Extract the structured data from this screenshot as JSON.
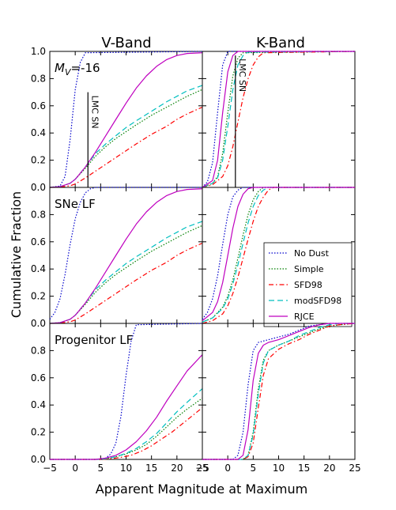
{
  "figure": {
    "columns": [
      "V-Band",
      "K-Band"
    ],
    "xlabel": "Apparent Magnitude at Maximum",
    "ylabel": "Cumulative Fraction"
  },
  "styles": {
    "No Dust": {
      "color": "#0000cc",
      "dash": "dotted"
    },
    "Simple": {
      "color": "#007f00",
      "dash": "dotted"
    },
    "SFD98": {
      "color": "#ff0000",
      "dash": "dashdot"
    },
    "modSFD98": {
      "color": "#00bfbf",
      "dash": "dashed"
    },
    "RJCE": {
      "color": "#bf00bf",
      "dash": "solid"
    }
  },
  "legend": {
    "position": "middle-right panel, right",
    "entries": [
      "No Dust",
      "Simple",
      "SFD98",
      "modSFD98",
      "RJCE"
    ]
  },
  "chart_data": [
    {
      "type": "line",
      "panel": "top-left",
      "column": "V-Band",
      "annotation": "M_V=-16",
      "vline": {
        "x": 2.5,
        "ymax": 0.7,
        "label": "LMC SN"
      },
      "xlim": [
        -5,
        25
      ],
      "ylim": [
        0,
        1.0
      ],
      "xticks": [
        "−5",
        "0",
        "5",
        "10",
        "15",
        "20",
        "25"
      ],
      "yticks": [
        "0.0",
        "0.2",
        "0.4",
        "0.6",
        "0.8",
        "1.0"
      ],
      "series": [
        {
          "name": "No Dust",
          "x": [
            -5,
            -3,
            -2,
            -1,
            0,
            1,
            2,
            25
          ],
          "values": [
            0,
            0.01,
            0.08,
            0.35,
            0.72,
            0.92,
            0.99,
            1.0
          ]
        },
        {
          "name": "Simple",
          "x": [
            -5,
            -3,
            -1,
            0,
            2,
            4,
            6,
            8,
            10,
            12,
            15,
            18,
            20,
            22,
            25
          ],
          "values": [
            0,
            0.005,
            0.03,
            0.06,
            0.14,
            0.23,
            0.3,
            0.36,
            0.41,
            0.46,
            0.53,
            0.59,
            0.63,
            0.67,
            0.72
          ]
        },
        {
          "name": "SFD98",
          "x": [
            -5,
            -3,
            -1,
            0,
            2,
            4,
            6,
            8,
            10,
            12,
            15,
            18,
            20,
            22,
            25
          ],
          "values": [
            0,
            0.002,
            0.012,
            0.025,
            0.07,
            0.12,
            0.17,
            0.22,
            0.27,
            0.32,
            0.39,
            0.45,
            0.5,
            0.54,
            0.59
          ]
        },
        {
          "name": "modSFD98",
          "x": [
            -5,
            -3,
            -1,
            0,
            2,
            4,
            6,
            8,
            10,
            12,
            15,
            18,
            20,
            22,
            25
          ],
          "values": [
            0,
            0.005,
            0.03,
            0.06,
            0.15,
            0.25,
            0.32,
            0.38,
            0.44,
            0.49,
            0.56,
            0.63,
            0.67,
            0.71,
            0.75
          ]
        },
        {
          "name": "RJCE",
          "x": [
            -5,
            -3,
            -1,
            0,
            2,
            4,
            6,
            8,
            10,
            12,
            14,
            16,
            18,
            20,
            22,
            25
          ],
          "values": [
            0,
            0.005,
            0.03,
            0.06,
            0.15,
            0.26,
            0.38,
            0.5,
            0.62,
            0.73,
            0.82,
            0.89,
            0.94,
            0.97,
            0.985,
            0.99
          ]
        }
      ]
    },
    {
      "type": "line",
      "panel": "top-right",
      "column": "K-Band",
      "vline": {
        "x": 1.5,
        "ymax": 0.97,
        "label": "LMC SN"
      },
      "xlim": [
        -5,
        25
      ],
      "ylim": [
        0,
        1.0
      ],
      "xticks": [
        "−5",
        "0",
        "5",
        "10",
        "15",
        "20",
        "25"
      ],
      "series": [
        {
          "name": "No Dust",
          "x": [
            -5,
            -4,
            -3,
            -2,
            -1,
            0,
            25
          ],
          "values": [
            0,
            0.04,
            0.18,
            0.55,
            0.9,
            1.0,
            1.0
          ]
        },
        {
          "name": "Simple",
          "x": [
            -5,
            -3,
            -2,
            -1,
            0,
            1,
            2,
            3,
            25
          ],
          "values": [
            0,
            0.03,
            0.08,
            0.25,
            0.55,
            0.82,
            0.95,
            0.99,
            1.0
          ]
        },
        {
          "name": "SFD98",
          "x": [
            -5,
            -3,
            -1,
            0,
            1,
            2,
            3,
            4,
            5,
            6,
            7,
            25
          ],
          "values": [
            0,
            0.02,
            0.08,
            0.16,
            0.3,
            0.48,
            0.66,
            0.8,
            0.9,
            0.96,
            0.99,
            1.0
          ]
        },
        {
          "name": "modSFD98",
          "x": [
            -5,
            -3,
            -2,
            -1,
            0,
            1,
            2,
            3,
            4,
            25
          ],
          "values": [
            0,
            0.03,
            0.07,
            0.2,
            0.45,
            0.72,
            0.9,
            0.97,
            0.995,
            1.0
          ]
        },
        {
          "name": "RJCE",
          "x": [
            -5,
            -3,
            -2,
            -1,
            0,
            1,
            2,
            25
          ],
          "values": [
            0,
            0.05,
            0.2,
            0.55,
            0.85,
            0.97,
            1.0,
            1.0
          ]
        }
      ]
    },
    {
      "type": "line",
      "panel": "middle-left",
      "column": "V-Band",
      "annotation": "SNe LF",
      "xlim": [
        -5,
        25
      ],
      "ylim": [
        0,
        1.0
      ],
      "xticks": [
        "−5",
        "0",
        "5",
        "10",
        "15",
        "20",
        "25"
      ],
      "yticks": [
        "0.0",
        "0.2",
        "0.4",
        "0.6",
        "0.8"
      ],
      "series": [
        {
          "name": "No Dust",
          "x": [
            -5,
            -4,
            -3,
            -2,
            -1,
            0,
            1,
            2,
            3,
            4,
            25
          ],
          "values": [
            0.03,
            0.08,
            0.18,
            0.36,
            0.58,
            0.77,
            0.89,
            0.96,
            0.99,
            1.0,
            1.0
          ]
        },
        {
          "name": "Simple",
          "x": [
            -5,
            -3,
            -1,
            0,
            2,
            4,
            6,
            8,
            10,
            12,
            15,
            18,
            20,
            22,
            25
          ],
          "values": [
            0,
            0.005,
            0.03,
            0.06,
            0.14,
            0.23,
            0.3,
            0.36,
            0.41,
            0.46,
            0.53,
            0.59,
            0.63,
            0.67,
            0.72
          ]
        },
        {
          "name": "SFD98",
          "x": [
            -5,
            -3,
            -1,
            0,
            2,
            4,
            6,
            8,
            10,
            12,
            15,
            18,
            20,
            22,
            25
          ],
          "values": [
            0,
            0.002,
            0.012,
            0.025,
            0.07,
            0.12,
            0.17,
            0.22,
            0.27,
            0.32,
            0.39,
            0.45,
            0.5,
            0.54,
            0.59
          ]
        },
        {
          "name": "modSFD98",
          "x": [
            -5,
            -3,
            -1,
            0,
            2,
            4,
            6,
            8,
            10,
            12,
            15,
            18,
            20,
            22,
            25
          ],
          "values": [
            0,
            0.005,
            0.03,
            0.06,
            0.15,
            0.25,
            0.32,
            0.38,
            0.44,
            0.49,
            0.56,
            0.63,
            0.67,
            0.71,
            0.75
          ]
        },
        {
          "name": "RJCE",
          "x": [
            -5,
            -3,
            -1,
            0,
            2,
            4,
            6,
            8,
            10,
            12,
            14,
            16,
            18,
            20,
            22,
            25
          ],
          "values": [
            0,
            0.005,
            0.03,
            0.06,
            0.15,
            0.26,
            0.38,
            0.5,
            0.62,
            0.73,
            0.82,
            0.89,
            0.94,
            0.97,
            0.985,
            0.99
          ]
        }
      ]
    },
    {
      "type": "line",
      "panel": "middle-right",
      "column": "K-Band",
      "xlim": [
        -5,
        25
      ],
      "ylim": [
        0,
        1.0
      ],
      "xticks": [
        "−5",
        "0",
        "5",
        "10",
        "15",
        "20",
        "25"
      ],
      "series": [
        {
          "name": "No Dust",
          "x": [
            -5,
            -4,
            -3,
            -2,
            -1,
            0,
            1,
            2,
            3,
            25
          ],
          "values": [
            0.03,
            0.08,
            0.18,
            0.35,
            0.58,
            0.8,
            0.93,
            0.98,
            1.0,
            1.0
          ]
        },
        {
          "name": "Simple",
          "x": [
            -5,
            -3,
            -1,
            0,
            1,
            2,
            3,
            4,
            5,
            6,
            7,
            25
          ],
          "values": [
            0.01,
            0.04,
            0.12,
            0.2,
            0.32,
            0.48,
            0.65,
            0.8,
            0.91,
            0.97,
            1.0,
            1.0
          ]
        },
        {
          "name": "SFD98",
          "x": [
            -5,
            -3,
            -1,
            0,
            1,
            2,
            3,
            4,
            5,
            6,
            7,
            8,
            9,
            25
          ],
          "values": [
            0,
            0.02,
            0.07,
            0.13,
            0.22,
            0.34,
            0.48,
            0.62,
            0.75,
            0.86,
            0.93,
            0.98,
            1.0,
            1.0
          ]
        },
        {
          "name": "modSFD98",
          "x": [
            -5,
            -3,
            -1,
            0,
            1,
            2,
            3,
            4,
            5,
            6,
            7,
            8,
            25
          ],
          "values": [
            0.01,
            0.04,
            0.11,
            0.18,
            0.29,
            0.43,
            0.59,
            0.74,
            0.86,
            0.94,
            0.98,
            1.0,
            1.0
          ]
        },
        {
          "name": "RJCE",
          "x": [
            -5,
            -3,
            -2,
            -1,
            0,
            1,
            2,
            3,
            4,
            5,
            25
          ],
          "values": [
            0.02,
            0.08,
            0.16,
            0.3,
            0.5,
            0.7,
            0.86,
            0.95,
            0.99,
            1.0,
            1.0
          ]
        }
      ]
    },
    {
      "type": "line",
      "panel": "bottom-left",
      "column": "V-Band",
      "annotation": "Progenitor LF",
      "xlim": [
        -5,
        25
      ],
      "ylim": [
        0,
        1.0
      ],
      "xticks": [
        "−5",
        "0",
        "5",
        "10",
        "15",
        "20",
        "25"
      ],
      "yticks": [
        "0.0",
        "0.2",
        "0.4",
        "0.6",
        "0.8"
      ],
      "series": [
        {
          "name": "No Dust",
          "x": [
            -5,
            5,
            6,
            7,
            8,
            9,
            10,
            11,
            12,
            25
          ],
          "values": [
            0,
            0,
            0.01,
            0.04,
            0.12,
            0.32,
            0.62,
            0.87,
            0.99,
            1.0
          ]
        },
        {
          "name": "Simple",
          "x": [
            -5,
            4,
            6,
            8,
            10,
            12,
            14,
            16,
            18,
            20,
            22,
            25
          ],
          "values": [
            0,
            0,
            0.005,
            0.02,
            0.04,
            0.07,
            0.11,
            0.17,
            0.24,
            0.31,
            0.37,
            0.45
          ]
        },
        {
          "name": "SFD98",
          "x": [
            -5,
            5,
            7,
            9,
            11,
            13,
            15,
            17,
            19,
            21,
            23,
            25
          ],
          "values": [
            0,
            0,
            0.005,
            0.015,
            0.03,
            0.06,
            0.1,
            0.15,
            0.2,
            0.26,
            0.32,
            0.38
          ]
        },
        {
          "name": "modSFD98",
          "x": [
            -5,
            4,
            6,
            8,
            10,
            12,
            14,
            16,
            18,
            20,
            22,
            25
          ],
          "values": [
            0,
            0,
            0.005,
            0.02,
            0.045,
            0.08,
            0.13,
            0.19,
            0.27,
            0.35,
            0.42,
            0.52
          ]
        },
        {
          "name": "RJCE",
          "x": [
            -5,
            4,
            6,
            8,
            10,
            12,
            14,
            16,
            18,
            20,
            22,
            25
          ],
          "values": [
            0,
            0,
            0.01,
            0.03,
            0.07,
            0.13,
            0.21,
            0.31,
            0.43,
            0.54,
            0.65,
            0.77
          ]
        }
      ]
    },
    {
      "type": "line",
      "panel": "bottom-right",
      "column": "K-Band",
      "xlim": [
        -5,
        25
      ],
      "ylim": [
        0,
        1.0
      ],
      "xticks": [
        "−5",
        "0",
        "5",
        "10",
        "15",
        "20",
        "25"
      ],
      "series": [
        {
          "name": "No Dust",
          "x": [
            -5,
            1,
            2,
            3,
            4,
            5,
            6,
            8,
            10,
            12,
            14,
            16,
            18,
            20,
            22,
            25
          ],
          "values": [
            0,
            0,
            0.03,
            0.2,
            0.55,
            0.8,
            0.86,
            0.88,
            0.9,
            0.92,
            0.95,
            0.98,
            0.99,
            1.0,
            1.0,
            1.0
          ]
        },
        {
          "name": "Simple",
          "x": [
            -5,
            3,
            4,
            5,
            6,
            7,
            8,
            10,
            12,
            14,
            16,
            18,
            20,
            22,
            25
          ],
          "values": [
            0,
            0,
            0.03,
            0.2,
            0.52,
            0.73,
            0.8,
            0.84,
            0.87,
            0.9,
            0.93,
            0.96,
            0.98,
            0.99,
            1.0
          ]
        },
        {
          "name": "SFD98",
          "x": [
            -5,
            3,
            4,
            5,
            6,
            7,
            8,
            10,
            12,
            14,
            16,
            18,
            20,
            22,
            25
          ],
          "values": [
            0,
            0,
            0.02,
            0.12,
            0.38,
            0.62,
            0.74,
            0.81,
            0.85,
            0.88,
            0.92,
            0.95,
            0.98,
            0.99,
            1.0
          ]
        },
        {
          "name": "modSFD98",
          "x": [
            -5,
            3,
            4,
            5,
            6,
            7,
            8,
            10,
            12,
            14,
            16,
            18,
            20,
            22,
            25
          ],
          "values": [
            0,
            0,
            0.03,
            0.18,
            0.48,
            0.71,
            0.8,
            0.84,
            0.87,
            0.91,
            0.94,
            0.97,
            0.99,
            1.0,
            1.0
          ]
        },
        {
          "name": "RJCE",
          "x": [
            -5,
            2,
            3,
            4,
            5,
            6,
            7,
            8,
            10,
            12,
            14,
            16,
            18,
            20,
            25
          ],
          "values": [
            0,
            0,
            0.03,
            0.22,
            0.58,
            0.78,
            0.84,
            0.86,
            0.88,
            0.91,
            0.94,
            0.97,
            0.99,
            1.0,
            1.0
          ]
        }
      ]
    }
  ]
}
